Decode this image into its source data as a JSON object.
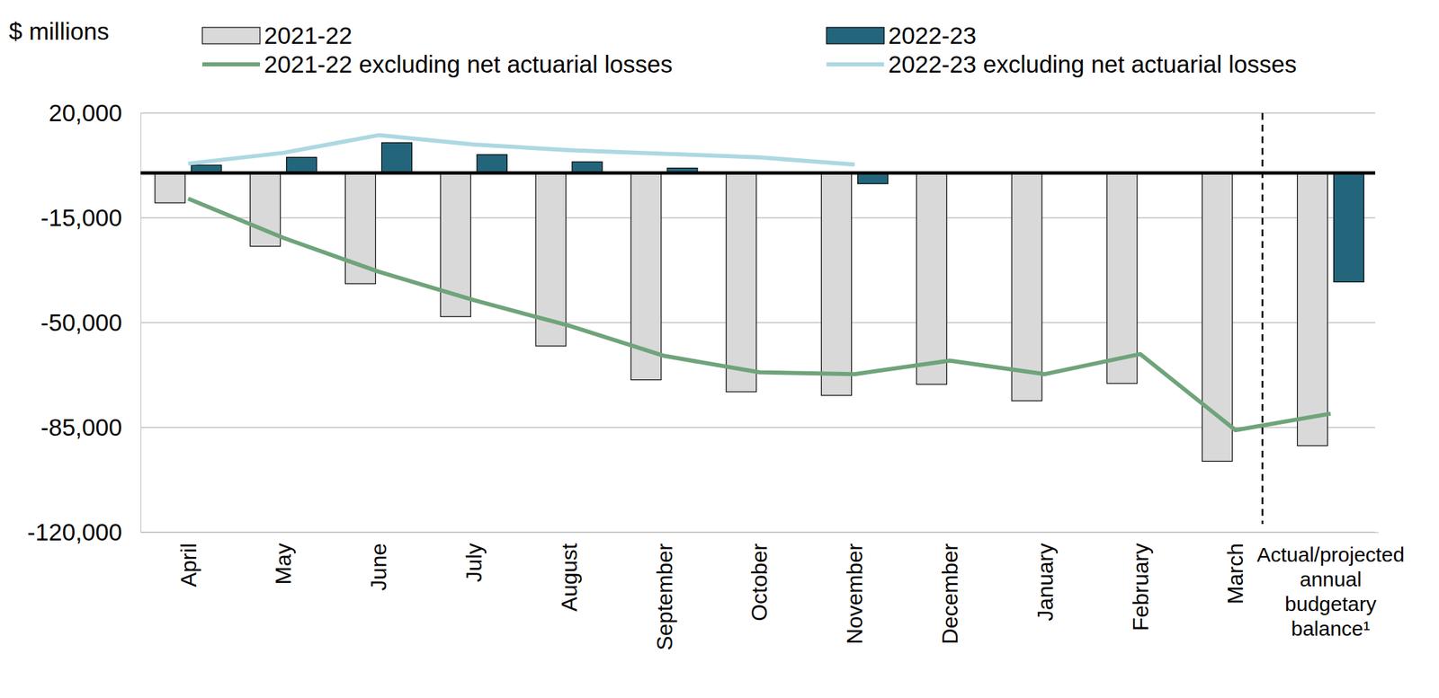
{
  "chart_data": {
    "type": "bar",
    "ylabel": "$ millions",
    "categories": [
      "April",
      "May",
      "June",
      "July",
      "August",
      "September",
      "October",
      "November",
      "December",
      "January",
      "February",
      "March",
      "Actual/projected annual budgetary balance¹"
    ],
    "series": [
      {
        "name": "2021-22",
        "type": "bar",
        "color": "#d9d9d9",
        "values": [
          -10000,
          -24500,
          -37000,
          -48000,
          -57800,
          -69100,
          -73100,
          -74300,
          -70600,
          -76100,
          -70300,
          -96300,
          -91100
        ]
      },
      {
        "name": "2022-23",
        "type": "bar",
        "color": "#23667b",
        "values": [
          2600,
          5200,
          10100,
          6100,
          3700,
          1600,
          300,
          -3600,
          null,
          null,
          null,
          null,
          -36400
        ]
      },
      {
        "name": "2021-22 excluding net actuarial losses",
        "type": "line",
        "color": "#6fa47a",
        "values": [
          -8600,
          -21700,
          -33000,
          -42500,
          -51000,
          -61100,
          -66600,
          -67200,
          -62700,
          -67200,
          -60500,
          -85900,
          -80400
        ]
      },
      {
        "name": "2022-23 excluding net actuarial losses",
        "type": "line",
        "color": "#add8e2",
        "values": [
          3100,
          6700,
          12600,
          9500,
          7600,
          6400,
          5200,
          2800,
          null,
          null,
          null,
          null,
          null
        ]
      }
    ],
    "ylim": [
      -120000,
      20000
    ],
    "yticks": [
      {
        "value": 20000,
        "label": "20,000"
      },
      {
        "value": -15000,
        "label": "-15,000"
      },
      {
        "value": -50000,
        "label": "-50,000"
      },
      {
        "value": -85000,
        "label": "-85,000"
      },
      {
        "value": -120000,
        "label": "-120,000"
      }
    ],
    "grid": true,
    "legend": "top"
  }
}
